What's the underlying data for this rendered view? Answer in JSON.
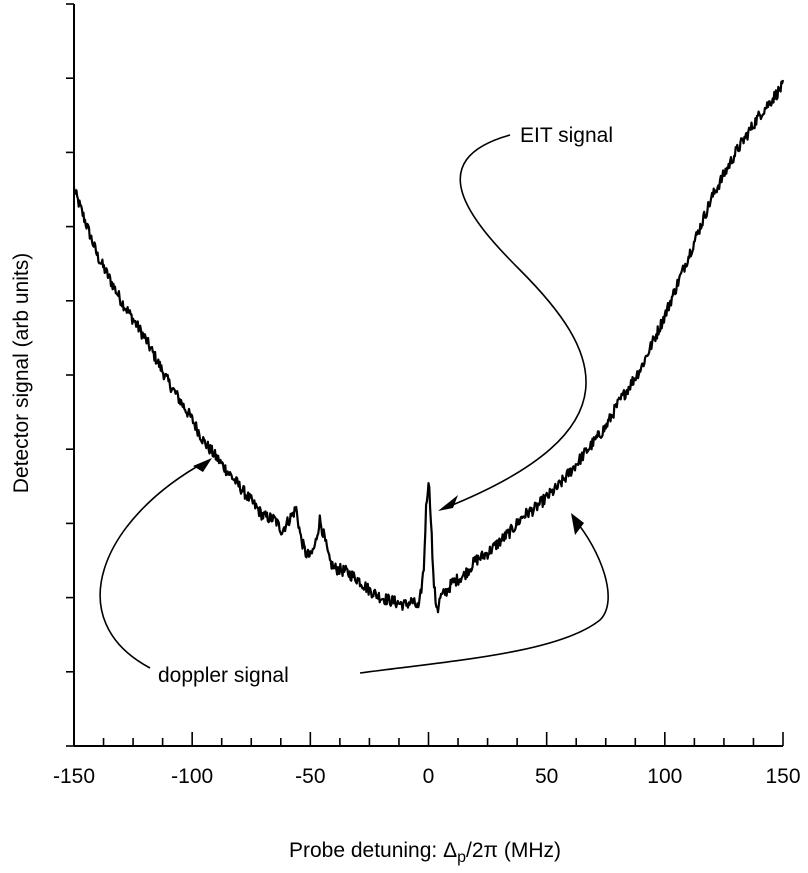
{
  "chart_data": {
    "type": "line",
    "xlabel": "Probe detuning: Δp/2π    (MHz)",
    "xlabel_parts": {
      "prefix": "Probe detuning: Δ",
      "sub": "p",
      "suffix": "/2π    (MHz)"
    },
    "ylabel": "Detector signal (arb units)",
    "xlim": [
      -150,
      150
    ],
    "ylim": [
      0,
      10
    ],
    "x_ticks": [
      -150,
      -100,
      -50,
      0,
      50,
      100,
      150
    ],
    "x_tick_labels": [
      "-150",
      "-100",
      "-50",
      "0",
      "50",
      "100",
      "150"
    ],
    "x_minor_step": 12.5,
    "y_tick_count": 11,
    "y_tick_labels_shown": false,
    "grid": false,
    "series": [
      {
        "x": [
          -150,
          -140,
          -130,
          -120,
          -110,
          -100,
          -95,
          -90,
          -85,
          -80,
          -75,
          -70,
          -65,
          -62,
          -60,
          -58,
          -56,
          -54,
          -52,
          -50,
          -48,
          -46,
          -44,
          -42,
          -40,
          -35,
          -30,
          -25,
          -20,
          -15,
          -10,
          -7,
          -4,
          -2,
          -1,
          0,
          1,
          2,
          3,
          4,
          5,
          8,
          10,
          15,
          20,
          25,
          30,
          35,
          40,
          45,
          50,
          55,
          60,
          65,
          70,
          75,
          80,
          90,
          100,
          110,
          120,
          130,
          140,
          150
        ],
        "y": [
          7.5,
          6.6,
          6.0,
          5.5,
          4.9,
          4.4,
          4.1,
          3.9,
          3.7,
          3.5,
          3.3,
          3.1,
          3.05,
          2.9,
          3.0,
          3.1,
          3.2,
          2.8,
          2.6,
          2.55,
          2.7,
          3.05,
          2.8,
          2.5,
          2.4,
          2.35,
          2.25,
          2.1,
          2.0,
          1.95,
          1.9,
          1.95,
          1.85,
          2.4,
          3.2,
          3.6,
          3.1,
          2.3,
          1.95,
          1.85,
          2.0,
          2.1,
          2.2,
          2.3,
          2.5,
          2.6,
          2.75,
          2.9,
          3.1,
          3.2,
          3.35,
          3.5,
          3.7,
          3.9,
          4.1,
          4.3,
          4.6,
          5.1,
          5.8,
          6.6,
          7.4,
          8.0,
          8.5,
          8.9
        ]
      }
    ],
    "annotations": [
      {
        "text": "EIT signal"
      },
      {
        "text": "doppler signal"
      }
    ]
  }
}
